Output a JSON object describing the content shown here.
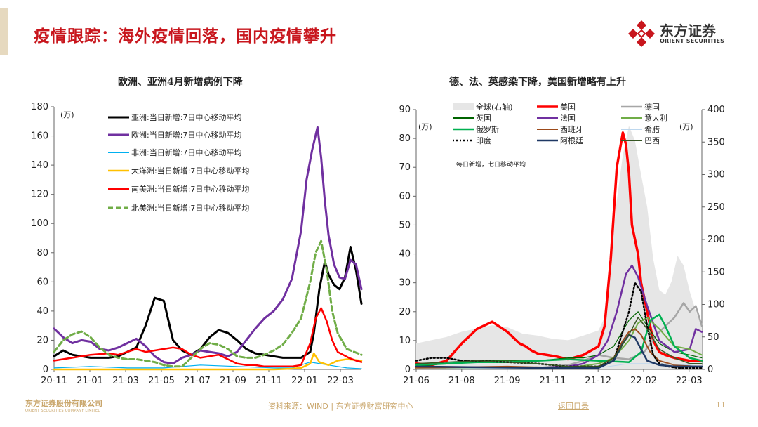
{
  "slide": {
    "title": "疫情跟踪：海外疫情回落，国内疫情攀升",
    "logo_cn": "东方证券",
    "logo_en": "ORIENT SECURITIES"
  },
  "footer": {
    "company_cn": "东方证券股份有限公司",
    "company_en": "ORIENT SECURITIES COMPANY LIMITED",
    "source": "资料来源：WIND  |  东方证券财富研究中心",
    "back_link": "返回目录",
    "page_number": "11"
  },
  "colors": {
    "brand_red": "#c8161d",
    "gold": "#c9a66b"
  },
  "chart_data": [
    {
      "type": "line",
      "title": "欧洲、亚洲4月新增病例下降",
      "unit": "(万)",
      "ylim": [
        0,
        180
      ],
      "y_ticks": [
        "0",
        "20",
        "40",
        "60",
        "80",
        "100",
        "120",
        "140",
        "160",
        "180"
      ],
      "x_ticks": [
        "20-11",
        "21-01",
        "21-03",
        "21-05",
        "21-07",
        "21-09",
        "21-11",
        "22-01",
        "22-03"
      ],
      "x_range": [
        0,
        16.8
      ],
      "legend_position": "top-left",
      "series": [
        {
          "name": "亚洲:当日新增:7日中心移动平均",
          "color": "#000000",
          "style": "solid",
          "width": 3,
          "x": [
            0,
            0.5,
            1,
            1.5,
            2,
            2.5,
            3,
            3.5,
            4,
            4.5,
            5,
            5.5,
            6,
            6.5,
            7,
            7.5,
            8,
            8.5,
            9,
            9.5,
            10,
            10.5,
            11,
            11.5,
            12,
            12.5,
            13,
            13.5,
            14,
            14.2,
            14.5,
            14.8,
            15,
            15.3,
            15.6,
            15.9,
            16.2,
            16.5,
            16.8
          ],
          "values": [
            9,
            13,
            10,
            9,
            8,
            8,
            8,
            9,
            12,
            15,
            30,
            49,
            47,
            20,
            13,
            10,
            14,
            22,
            27,
            25,
            20,
            14,
            11,
            10,
            9,
            8,
            8,
            8,
            12,
            25,
            55,
            74,
            65,
            58,
            55,
            63,
            84,
            68,
            45
          ]
        },
        {
          "name": "欧洲:当日新增:7日中心移动平均",
          "color": "#7030a0",
          "style": "solid",
          "width": 3,
          "x": [
            0,
            0.5,
            1,
            1.5,
            2,
            2.5,
            3,
            3.5,
            4,
            4.5,
            5,
            5.5,
            6,
            6.5,
            7,
            7.5,
            8,
            8.5,
            9,
            9.5,
            10,
            10.5,
            11,
            11.5,
            12,
            12.5,
            13,
            13.5,
            13.8,
            14.1,
            14.4,
            14.6,
            14.8,
            15,
            15.3,
            15.6,
            15.9,
            16.2,
            16.5,
            16.8
          ],
          "values": [
            28,
            22,
            18,
            20,
            19,
            14,
            13,
            15,
            18,
            21,
            16,
            9,
            5,
            4,
            8,
            10,
            13,
            12,
            11,
            9,
            12,
            20,
            28,
            35,
            40,
            48,
            62,
            95,
            130,
            150,
            166,
            145,
            115,
            92,
            72,
            63,
            62,
            75,
            72,
            55
          ]
        },
        {
          "name": "非洲:当日新增:7日中心移动平均",
          "color": "#00b0f0",
          "style": "solid",
          "width": 1.2,
          "x": [
            0,
            2,
            4,
            6,
            8,
            10,
            12,
            13,
            14,
            15,
            16,
            16.8
          ],
          "values": [
            1,
            2,
            1,
            1,
            3,
            2,
            1,
            1,
            5,
            3,
            1,
            0.5
          ]
        },
        {
          "name": "大洋洲:当日新增:7日中心移动平均",
          "color": "#ffc000",
          "style": "solid",
          "width": 2.5,
          "x": [
            0,
            4,
            8,
            10,
            12,
            13,
            13.5,
            14,
            14.2,
            14.5,
            15,
            15.5,
            16,
            16.8
          ],
          "values": [
            0,
            0,
            0,
            0,
            0,
            0.5,
            1,
            4,
            11,
            5,
            3,
            6,
            7,
            6
          ]
        },
        {
          "name": "南美洲:当日新增:7日中心移动平均",
          "color": "#ff0000",
          "style": "solid",
          "width": 2.5,
          "x": [
            0,
            1,
            2,
            3,
            3.5,
            4,
            4.5,
            5,
            5.5,
            6,
            6.5,
            7,
            7.5,
            8,
            8.5,
            9,
            9.5,
            10,
            10.5,
            11,
            11.5,
            12,
            12.5,
            13,
            13.5,
            14,
            14.3,
            14.6,
            14.9,
            15.2,
            15.5,
            15.8,
            16.1,
            16.5,
            16.8
          ],
          "values": [
            6,
            8,
            10,
            11,
            10,
            12,
            14,
            12,
            13,
            14,
            15,
            14,
            10,
            8,
            9,
            10,
            7,
            4,
            3,
            3,
            2,
            2,
            2,
            2,
            3,
            18,
            35,
            42,
            33,
            20,
            12,
            10,
            8,
            6,
            5
          ]
        },
        {
          "name": "北美洲:当日新增:7日中心移动平均",
          "color": "#70ad47",
          "style": "dashed",
          "width": 3,
          "x": [
            0,
            0.5,
            1,
            1.5,
            2,
            2.5,
            3,
            3.5,
            4,
            4.5,
            5,
            5.5,
            6,
            6.5,
            7,
            7.5,
            8,
            8.5,
            9,
            9.5,
            10,
            10.5,
            11,
            11.5,
            12,
            12.5,
            13,
            13.5,
            14,
            14.3,
            14.6,
            14.9,
            15.2,
            15.5,
            16,
            16.8
          ],
          "values": [
            12,
            20,
            24,
            26,
            22,
            15,
            10,
            8,
            7,
            7,
            6,
            5,
            3,
            2,
            2,
            8,
            14,
            18,
            17,
            14,
            9,
            8,
            8,
            10,
            13,
            17,
            25,
            35,
            60,
            80,
            88,
            68,
            40,
            25,
            14,
            10
          ]
        }
      ]
    },
    {
      "type": "line",
      "title": "德、法、英感染下降，美国新增略有上升",
      "unit_left": "(万)",
      "unit_right": "(万)",
      "annotation": "每日新增，七日移动平均",
      "ylim": [
        0,
        90
      ],
      "y2lim": [
        0,
        400
      ],
      "y_ticks": [
        "0",
        "10",
        "20",
        "30",
        "40",
        "50",
        "60",
        "70",
        "80",
        "90"
      ],
      "y2_ticks": [
        "0",
        "50",
        "100",
        "150",
        "200",
        "250",
        "300",
        "350",
        "400"
      ],
      "x_ticks": [
        "21-06",
        "21-08",
        "21-09",
        "21-11",
        "21-12",
        "22-02",
        "22-03"
      ],
      "x_range": [
        0,
        9.4
      ],
      "legend_position": "top",
      "series": [
        {
          "name": "全球(右轴)",
          "color": "#e6e6e6",
          "style": "area",
          "axis": "right",
          "x": [
            0,
            0.5,
            1,
            1.5,
            2,
            2.5,
            3,
            3.5,
            4,
            4.5,
            5,
            5.5,
            6,
            6.2,
            6.4,
            6.6,
            6.8,
            7,
            7.2,
            7.4,
            7.6,
            7.8,
            8,
            8.2,
            8.4,
            8.6,
            8.8,
            9,
            9.2,
            9.4
          ],
          "values": [
            40,
            45,
            50,
            58,
            63,
            68,
            65,
            55,
            52,
            47,
            45,
            52,
            60,
            80,
            170,
            260,
            330,
            375,
            352,
            300,
            250,
            170,
            122,
            115,
            135,
            175,
            160,
            120,
            90,
            65
          ]
        },
        {
          "name": "美国",
          "color": "#ff0000",
          "style": "solid",
          "width": 3.5,
          "x": [
            0,
            0.5,
            1,
            1.5,
            2,
            2.5,
            3,
            3.2,
            3.4,
            3.6,
            3.8,
            4,
            4.3,
            4.6,
            5,
            5.5,
            6,
            6.2,
            6.4,
            6.6,
            6.8,
            6.9,
            7,
            7.1,
            7.2,
            7.3,
            7.4,
            7.6,
            7.8,
            8,
            8.2,
            8.5,
            9,
            9.4
          ],
          "values": [
            2,
            1.5,
            3,
            9,
            14,
            16.5,
            13,
            11,
            9,
            8,
            6.5,
            5.5,
            5,
            4.5,
            3.5,
            5,
            8,
            15,
            38,
            70,
            82,
            78,
            68,
            50,
            45,
            40,
            30,
            20,
            10,
            6,
            5,
            4,
            3,
            3
          ]
        },
        {
          "name": "德国",
          "color": "#a6a6a6",
          "style": "solid",
          "width": 2.5,
          "x": [
            0,
            4,
            5,
            5.5,
            6,
            6.5,
            7,
            7.5,
            8,
            8.5,
            8.8,
            9,
            9.2,
            9.4
          ],
          "values": [
            0.3,
            0.5,
            1.5,
            3,
            5,
            4,
            3.5,
            6,
            13,
            18,
            23,
            20,
            22,
            15
          ]
        },
        {
          "name": "英国",
          "color": "#006400",
          "style": "solid",
          "width": 1.2,
          "x": [
            0,
            1,
            2,
            3,
            4,
            5,
            5.5,
            6,
            6.5,
            7,
            7.3,
            7.6,
            8,
            8.5,
            9,
            9.4
          ],
          "values": [
            1,
            2,
            3,
            3,
            3,
            4,
            4,
            5,
            8,
            17,
            20,
            15,
            9,
            6,
            5,
            4
          ]
        },
        {
          "name": "法国",
          "color": "#7030a0",
          "style": "solid",
          "width": 2.5,
          "x": [
            0,
            4,
            5,
            5.5,
            6,
            6.3,
            6.6,
            6.9,
            7.1,
            7.3,
            7.6,
            8,
            8.5,
            9,
            9.2,
            9.4
          ],
          "values": [
            0.5,
            0.5,
            1,
            2,
            5,
            10,
            20,
            33,
            36,
            32,
            22,
            10,
            6,
            7,
            14,
            13
          ]
        },
        {
          "name": "意大利",
          "color": "#70ad47",
          "style": "solid",
          "width": 2,
          "x": [
            0,
            5,
            6,
            6.5,
            7,
            7.3,
            7.6,
            8,
            8.5,
            9,
            9.4
          ],
          "values": [
            0.3,
            0.5,
            2,
            4,
            10,
            16,
            18,
            14,
            8,
            7,
            5
          ]
        },
        {
          "name": "俄罗斯",
          "color": "#00b050",
          "style": "solid",
          "width": 2.5,
          "x": [
            0,
            1,
            2,
            3,
            4,
            5,
            6,
            7,
            7.4,
            7.7,
            8,
            8.2,
            8.5,
            9,
            9.4
          ],
          "values": [
            1.5,
            2,
            2.5,
            2.5,
            3,
            3.5,
            3,
            2.5,
            6,
            17,
            19,
            15,
            8,
            4,
            3
          ]
        },
        {
          "name": "西班牙",
          "color": "#9c4a1a",
          "style": "solid",
          "width": 2,
          "x": [
            0,
            3,
            5,
            6,
            6.5,
            6.8,
            7,
            7.2,
            7.4,
            7.7,
            8,
            8.5,
            9.4
          ],
          "values": [
            0.5,
            1,
            0.5,
            1,
            4,
            10,
            13,
            14,
            12,
            6,
            3,
            1.5,
            1
          ]
        },
        {
          "name": "希腊",
          "color": "#bdd7ee",
          "style": "solid",
          "width": 1,
          "x": [
            0,
            6,
            7,
            8,
            9,
            9.4
          ],
          "values": [
            0.2,
            0.5,
            2,
            2,
            1.5,
            1
          ]
        },
        {
          "name": "印度",
          "color": "#000000",
          "style": "dotted",
          "width": 2.5,
          "x": [
            0,
            0.5,
            1,
            1.5,
            2,
            3,
            4,
            5,
            6,
            6.5,
            7,
            7.2,
            7.4,
            7.6,
            7.8,
            8,
            8.3,
            8.6,
            9,
            9.4
          ],
          "values": [
            3,
            4,
            4,
            3,
            3,
            2.5,
            2,
            1,
            1,
            3,
            20,
            30,
            27,
            15,
            5,
            2,
            1,
            0.5,
            0.5,
            0.5
          ]
        },
        {
          "name": "阿根廷",
          "color": "#1f3864",
          "style": "solid",
          "width": 2.5,
          "x": [
            0,
            4,
            6,
            6.5,
            6.8,
            7,
            7.2,
            7.4,
            7.6,
            8,
            8.5,
            9.4
          ],
          "values": [
            1,
            0.5,
            0.5,
            3,
            9,
            12,
            11,
            7,
            3,
            1.5,
            1,
            1
          ]
        },
        {
          "name": "巴西",
          "color": "#375623",
          "style": "solid",
          "width": 1.5,
          "x": [
            0,
            2,
            4,
            5,
            6,
            6.5,
            7,
            7.3,
            7.6,
            8,
            8.5,
            9,
            9.4
          ],
          "values": [
            2,
            3,
            2,
            1,
            1,
            4,
            12,
            18,
            14,
            7,
            4,
            2,
            2
          ]
        }
      ]
    }
  ]
}
